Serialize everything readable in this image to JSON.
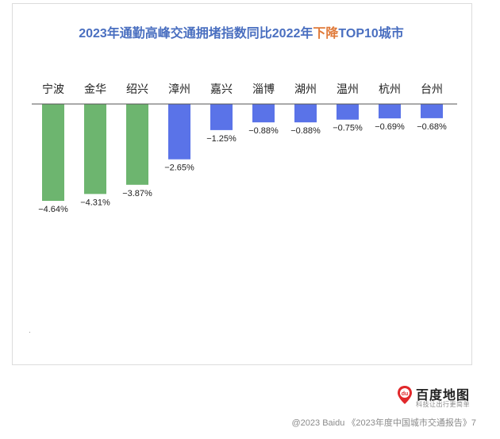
{
  "chart_data": {
    "type": "bar",
    "title_parts": [
      "2023年通勤高峰交通拥堵指数同比2022年",
      "下降",
      "TOP10城市"
    ],
    "categories": [
      "宁波",
      "金华",
      "绍兴",
      "漳州",
      "嘉兴",
      "淄博",
      "湖州",
      "温州",
      "杭州",
      "台州"
    ],
    "values": [
      -4.64,
      -4.31,
      -3.87,
      -2.65,
      -1.25,
      -0.88,
      -0.88,
      -0.75,
      -0.69,
      -0.68
    ],
    "value_labels": [
      "−4.64%",
      "−4.31%",
      "−3.87%",
      "−2.65%",
      "−1.25%",
      "−0.88%",
      "−0.88%",
      "−0.75%",
      "−0.69%",
      "−0.68%"
    ],
    "bar_colors": [
      "#6db56f",
      "#6db56f",
      "#6db56f",
      "#5a73e8",
      "#5a73e8",
      "#5a73e8",
      "#5a73e8",
      "#5a73e8",
      "#5a73e8",
      "#5a73e8"
    ],
    "ylim": [
      -5,
      0
    ],
    "xlabel": "",
    "ylabel": "",
    "grid": false,
    "legend": "none"
  },
  "brand": {
    "name": "百度地图",
    "slogan": "科技让出行更简单",
    "logo_icon": "baidu-du-pin-icon",
    "logo_text": "du",
    "logo_color": "#e1282b"
  },
  "footer": {
    "text": "@2023 Baidu 《2023年度中国城市交通报告》7"
  },
  "colors": {
    "title": "#4a6fc0",
    "title_highlight": "#e07a39",
    "axis": "#555555"
  }
}
